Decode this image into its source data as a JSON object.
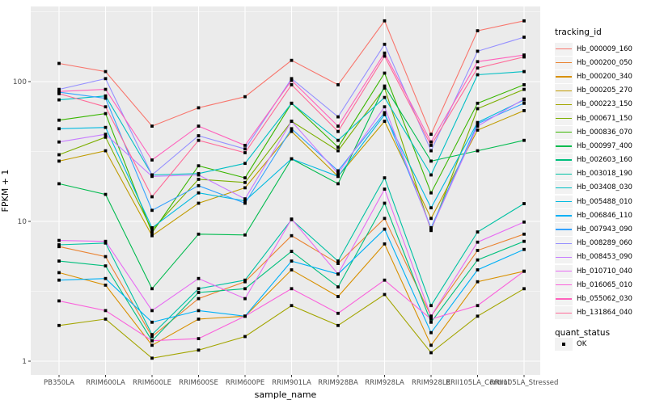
{
  "figure": {
    "panel_background": "#EBEBEB",
    "grid_color": "#FFFFFF",
    "axis_text_color": "#4D4D4D",
    "tick_color": "#333333"
  },
  "legend": {
    "tracking_title": "tracking_id",
    "quant_title": "quant_status",
    "quant_value": "OK"
  },
  "chart_data": {
    "type": "line",
    "title": "",
    "xlabel": "sample_name",
    "ylabel": "FPKM + 1",
    "y_scale": "log10",
    "y_ticks": [
      1,
      10,
      100
    ],
    "y_minor_ticks": [
      3.162,
      31.62,
      316.2
    ],
    "ylim": [
      0.8,
      330
    ],
    "grid": true,
    "legend_position": "right",
    "marker": {
      "shape": "filled-square",
      "color": "#000000",
      "status_label": "OK"
    },
    "categories": [
      "PB350LA",
      "RRIM600LA",
      "RRIM600LE",
      "RRIM600SE",
      "RRIM600PE",
      "RRIM901LA",
      "RRIM928BA",
      "RRIM928LA",
      "RRIM928LE",
      "RRII105LA_Control",
      "RRII105LA_Stressed"
    ],
    "series": [
      {
        "name": "Hb_000009_160",
        "color": "#F8766D",
        "values": [
          135,
          118,
          48,
          65,
          78,
          142,
          95,
          272,
          42,
          231,
          272
        ]
      },
      {
        "name": "Hb_000200_050",
        "color": "#EA8331",
        "values": [
          6.6,
          5.6,
          1.5,
          2.8,
          3.7,
          7.9,
          5.0,
          10.5,
          2.1,
          6.2,
          8.1
        ]
      },
      {
        "name": "Hb_000200_340",
        "color": "#D89000",
        "values": [
          4.3,
          3.5,
          1.3,
          2.0,
          2.1,
          4.5,
          2.9,
          6.9,
          1.3,
          3.7,
          4.4
        ]
      },
      {
        "name": "Hb_000205_270",
        "color": "#C09B00",
        "values": [
          27,
          32,
          7.9,
          13.5,
          17.4,
          44,
          21,
          52,
          10.5,
          45,
          62
        ]
      },
      {
        "name": "Hb_000223_150",
        "color": "#A3A500",
        "values": [
          1.8,
          2.0,
          1.05,
          1.2,
          1.5,
          2.5,
          1.8,
          3.0,
          1.15,
          2.1,
          3.3
        ]
      },
      {
        "name": "Hb_000671_150",
        "color": "#7CAE00",
        "values": [
          30,
          40,
          8.7,
          20,
          19,
          52,
          32,
          90,
          8.6,
          64,
          88
        ]
      },
      {
        "name": "Hb_000836_070",
        "color": "#39B600",
        "values": [
          53,
          59,
          8.3,
          25,
          20.5,
          70,
          34,
          115,
          16,
          70,
          95
        ]
      },
      {
        "name": "Hb_000997_400",
        "color": "#00BB4E",
        "values": [
          18.6,
          15.6,
          3.3,
          8.1,
          8.0,
          28,
          18.6,
          93,
          27,
          32,
          38
        ]
      },
      {
        "name": "Hb_002603_160",
        "color": "#00BF7D",
        "values": [
          5.2,
          4.8,
          1.4,
          3.1,
          3.3,
          6.1,
          3.4,
          13.5,
          1.9,
          5.3,
          7.2
        ]
      },
      {
        "name": "Hb_003018_190",
        "color": "#00C1A3",
        "values": [
          6.8,
          7.0,
          1.55,
          3.3,
          3.8,
          10.3,
          5.2,
          20.5,
          2.5,
          8.4,
          13.4
        ]
      },
      {
        "name": "Hb_003408_030",
        "color": "#00BFC4",
        "values": [
          74,
          79,
          21.5,
          22,
          26,
          70,
          38,
          77,
          21.5,
          112,
          118
        ]
      },
      {
        "name": "Hb_005488_010",
        "color": "#00BAE0",
        "values": [
          46,
          47,
          9.0,
          16,
          14,
          28,
          21,
          58,
          12.5,
          51,
          74
        ]
      },
      {
        "name": "Hb_006846_110",
        "color": "#00B0F6",
        "values": [
          3.8,
          3.9,
          1.9,
          2.3,
          2.1,
          5.2,
          4.2,
          8.8,
          1.6,
          4.5,
          6.3
        ]
      },
      {
        "name": "Hb_007943_090",
        "color": "#35A2FF",
        "values": [
          84,
          76,
          12,
          18,
          13.5,
          46,
          23,
          60,
          9.0,
          50,
          70
        ]
      },
      {
        "name": "Hb_008289_060",
        "color": "#9590FF",
        "values": [
          88,
          105,
          21.5,
          41,
          33,
          105,
          56,
          185,
          32,
          165,
          208
        ]
      },
      {
        "name": "Hb_008453_090",
        "color": "#C77CFF",
        "values": [
          37,
          42,
          21,
          21.5,
          14.5,
          52,
          22,
          66,
          8.8,
          48,
          75
        ]
      },
      {
        "name": "Hb_010710_040",
        "color": "#E76BF3",
        "values": [
          7.3,
          7.2,
          2.3,
          3.9,
          2.8,
          10.4,
          4.2,
          17,
          2.1,
          7.1,
          9.9
        ]
      },
      {
        "name": "Hb_016065_010",
        "color": "#FA62DB",
        "values": [
          2.7,
          2.3,
          1.4,
          1.45,
          2.1,
          3.3,
          2.2,
          3.8,
          2.0,
          2.5,
          4.4
        ]
      },
      {
        "name": "Hb_055062_030",
        "color": "#FF62BC",
        "values": [
          85,
          88,
          27.5,
          48,
          35,
          102,
          48,
          160,
          37,
          139,
          155
        ]
      },
      {
        "name": "Hb_131864_040",
        "color": "#FF6A98",
        "values": [
          82,
          66,
          15,
          38,
          31,
          95,
          44,
          152,
          35,
          125,
          150
        ]
      }
    ]
  }
}
